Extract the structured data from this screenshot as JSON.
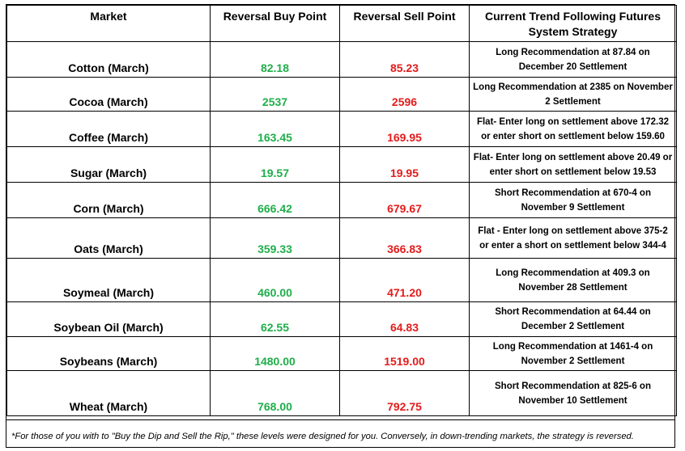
{
  "headers": {
    "market": "Market",
    "buy": "Reversal Buy Point",
    "sell": "Reversal Sell Point",
    "strategy": "Current Trend Following Futures System Strategy"
  },
  "rows": [
    {
      "market": "Cotton (March)",
      "buy": "82.18",
      "sell": "85.23",
      "strategy": "Long Recommendation at 87.84 on December 20 Settlement"
    },
    {
      "market": "Cocoa (March)",
      "buy": "2537",
      "sell": "2596",
      "strategy": "Long Recommendation at 2385 on November 2 Settlement"
    },
    {
      "market": "Coffee (March)",
      "buy": "163.45",
      "sell": "169.95",
      "strategy": "Flat- Enter long on settlement above 172.32 or enter short on settlement below 159.60"
    },
    {
      "market": "Sugar (March)",
      "buy": "19.57",
      "sell": "19.95",
      "strategy": "Flat- Enter long on settlement above 20.49 or enter short on settlement below 19.53"
    },
    {
      "market": "Corn (March)",
      "buy": "666.42",
      "sell": "679.67",
      "strategy": "Short Recommendation at 670-4 on November 9 Settlement"
    },
    {
      "market": "Oats (March)",
      "buy": "359.33",
      "sell": "366.83",
      "strategy": "Flat - Enter long on settlement above 375-2 or enter a short on settlement below 344-4"
    },
    {
      "market": "Soymeal (March)",
      "buy": "460.00",
      "sell": "471.20",
      "strategy": "Long Recommendation at 409.3 on November 28 Settlement"
    },
    {
      "market": "Soybean Oil (March)",
      "buy": "62.55",
      "sell": "64.83",
      "strategy": "Short Recommendation at 64.44 on December 2 Settlement"
    },
    {
      "market": "Soybeans (March)",
      "buy": "1480.00",
      "sell": "1519.00",
      "strategy": "Long Recommendation at 1461-4 on November 2 Settlement"
    },
    {
      "market": "Wheat (March)",
      "buy": "768.00",
      "sell": "792.75",
      "strategy": "Short Recommendation at 825-6 on November 10 Settlement"
    }
  ],
  "colors": {
    "buy": "#1fae4a",
    "sell": "#e31b1b"
  },
  "footnote": "*For those of you with to \"Buy the Dip and Sell the Rip,\" these levels were designed for you. Conversely, in down-trending markets, the strategy is reversed."
}
